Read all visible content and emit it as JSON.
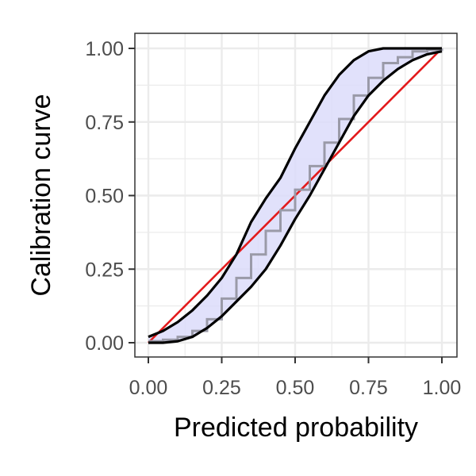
{
  "chart_data": {
    "type": "line",
    "title": "",
    "xlabel": "Predicted probability",
    "ylabel": "Calibration curve",
    "xlim": [
      0,
      1
    ],
    "ylim": [
      0,
      1
    ],
    "x_ticks": [
      0,
      0.25,
      0.5,
      0.75,
      1
    ],
    "y_ticks": [
      0,
      0.25,
      0.5,
      0.75,
      1
    ],
    "x_tick_labels": [
      "0.00",
      "0.25",
      "0.50",
      "0.75",
      "1.00"
    ],
    "y_tick_labels": [
      "0.00",
      "0.25",
      "0.50",
      "0.75",
      "1.00"
    ],
    "grid": true,
    "legend": "none",
    "colors": {
      "reference": "#e31a1c",
      "estimate": "#9a9aa8",
      "band_fill": "#dcdcfa",
      "band_outline": "#000000",
      "grid": "#ebebeb",
      "panel_border": "#333333"
    },
    "reference_line": {
      "x": [
        0,
        1
      ],
      "y": [
        0,
        1
      ]
    },
    "series": [
      {
        "role": "estimate",
        "x": [
          0,
          0.05,
          0.1,
          0.15,
          0.2,
          0.25,
          0.3,
          0.35,
          0.4,
          0.45,
          0.5,
          0.55,
          0.6,
          0.65,
          0.7,
          0.75,
          0.8,
          0.85,
          0.9,
          0.95,
          1.0
        ],
        "y": [
          0.005,
          0.01,
          0.02,
          0.04,
          0.08,
          0.15,
          0.22,
          0.3,
          0.38,
          0.45,
          0.52,
          0.6,
          0.68,
          0.76,
          0.84,
          0.9,
          0.95,
          0.97,
          0.99,
          0.995,
          1.0
        ]
      },
      {
        "role": "upper",
        "x": [
          0,
          0.05,
          0.1,
          0.15,
          0.2,
          0.25,
          0.3,
          0.35,
          0.4,
          0.45,
          0.5,
          0.55,
          0.6,
          0.65,
          0.7,
          0.75,
          0.8,
          0.85,
          0.9,
          0.95,
          1.0
        ],
        "y": [
          0.02,
          0.04,
          0.07,
          0.11,
          0.16,
          0.22,
          0.3,
          0.41,
          0.49,
          0.56,
          0.66,
          0.75,
          0.84,
          0.91,
          0.96,
          0.99,
          1.0,
          1.0,
          1.0,
          1.0,
          1.0
        ]
      },
      {
        "role": "lower",
        "x": [
          0,
          0.05,
          0.1,
          0.15,
          0.2,
          0.25,
          0.3,
          0.35,
          0.4,
          0.45,
          0.5,
          0.55,
          0.6,
          0.65,
          0.7,
          0.75,
          0.8,
          0.85,
          0.9,
          0.95,
          1.0
        ],
        "y": [
          0.0,
          0.0,
          0.005,
          0.02,
          0.05,
          0.09,
          0.14,
          0.19,
          0.25,
          0.33,
          0.42,
          0.5,
          0.59,
          0.68,
          0.77,
          0.84,
          0.89,
          0.93,
          0.96,
          0.98,
          0.99
        ]
      }
    ]
  }
}
